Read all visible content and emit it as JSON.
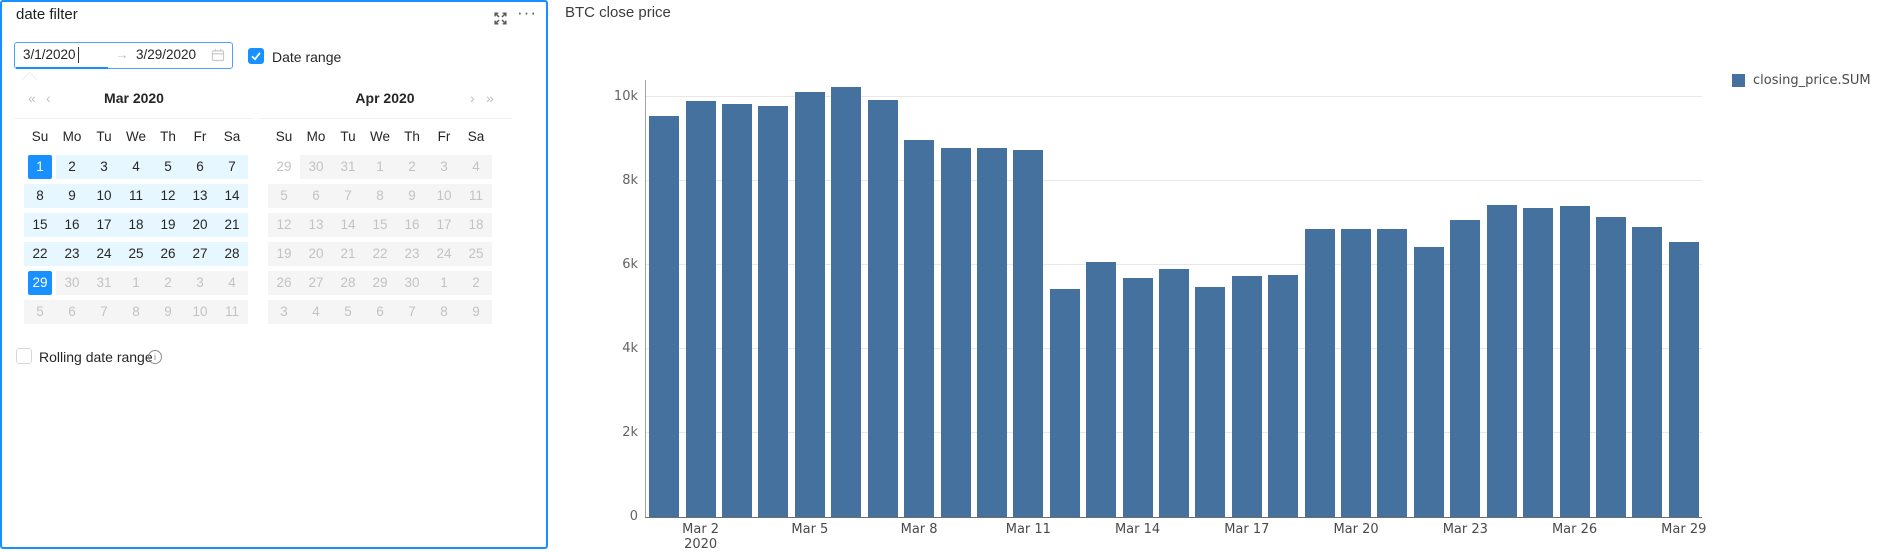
{
  "colors": {
    "accent": "#1890ff",
    "range_bg": "#e6f7ff",
    "disabled_bg": "#f5f5f5",
    "bar": "#45719f"
  },
  "panel": {
    "title": "date filter",
    "input": {
      "start": "3/1/2020",
      "arrow": "→",
      "end": "3/29/2020"
    },
    "date_range_checkbox": {
      "label": "Date range",
      "checked": true
    },
    "rolling_checkbox": {
      "label": "Rolling date range",
      "checked": false
    }
  },
  "calendar": {
    "weekdays": [
      "Su",
      "Mo",
      "Tu",
      "We",
      "Th",
      "Fr",
      "Sa"
    ],
    "months": [
      {
        "title": "Mar 2020",
        "nav_left": [
          {
            "name": "prev-year-icon",
            "glyph": "«"
          },
          {
            "name": "prev-month-icon",
            "glyph": "‹"
          }
        ],
        "nav_right": [],
        "weeks": [
          [
            {
              "d": 1,
              "s": "sel"
            },
            {
              "d": 2,
              "s": "range"
            },
            {
              "d": 3,
              "s": "range"
            },
            {
              "d": 4,
              "s": "range"
            },
            {
              "d": 5,
              "s": "range"
            },
            {
              "d": 6,
              "s": "range"
            },
            {
              "d": 7,
              "s": "range"
            }
          ],
          [
            {
              "d": 8,
              "s": "range"
            },
            {
              "d": 9,
              "s": "range"
            },
            {
              "d": 10,
              "s": "range"
            },
            {
              "d": 11,
              "s": "range"
            },
            {
              "d": 12,
              "s": "range"
            },
            {
              "d": 13,
              "s": "range"
            },
            {
              "d": 14,
              "s": "range"
            }
          ],
          [
            {
              "d": 15,
              "s": "range"
            },
            {
              "d": 16,
              "s": "range"
            },
            {
              "d": 17,
              "s": "range"
            },
            {
              "d": 18,
              "s": "range"
            },
            {
              "d": 19,
              "s": "range"
            },
            {
              "d": 20,
              "s": "range"
            },
            {
              "d": 21,
              "s": "range"
            }
          ],
          [
            {
              "d": 22,
              "s": "range"
            },
            {
              "d": 23,
              "s": "range"
            },
            {
              "d": 24,
              "s": "range"
            },
            {
              "d": 25,
              "s": "range"
            },
            {
              "d": 26,
              "s": "range"
            },
            {
              "d": 27,
              "s": "range"
            },
            {
              "d": 28,
              "s": "range"
            }
          ],
          [
            {
              "d": 29,
              "s": "sel"
            },
            {
              "d": 30,
              "s": "dis"
            },
            {
              "d": 31,
              "s": "dis"
            },
            {
              "d": 1,
              "s": "dis"
            },
            {
              "d": 2,
              "s": "dis"
            },
            {
              "d": 3,
              "s": "dis"
            },
            {
              "d": 4,
              "s": "dis"
            }
          ],
          [
            {
              "d": 5,
              "s": "dis"
            },
            {
              "d": 6,
              "s": "dis"
            },
            {
              "d": 7,
              "s": "dis"
            },
            {
              "d": 8,
              "s": "dis"
            },
            {
              "d": 9,
              "s": "dis"
            },
            {
              "d": 10,
              "s": "dis"
            },
            {
              "d": 11,
              "s": "dis"
            }
          ]
        ]
      },
      {
        "title": "Apr 2020",
        "nav_left": [],
        "nav_right": [
          {
            "name": "next-month-icon",
            "glyph": "›"
          },
          {
            "name": "next-year-icon",
            "glyph": "»"
          }
        ],
        "weeks": [
          [
            {
              "d": 29,
              "s": "out"
            },
            {
              "d": 30,
              "s": "dis"
            },
            {
              "d": 31,
              "s": "dis"
            },
            {
              "d": 1,
              "s": "dis"
            },
            {
              "d": 2,
              "s": "dis"
            },
            {
              "d": 3,
              "s": "dis"
            },
            {
              "d": 4,
              "s": "dis"
            }
          ],
          [
            {
              "d": 5,
              "s": "dis"
            },
            {
              "d": 6,
              "s": "dis"
            },
            {
              "d": 7,
              "s": "dis"
            },
            {
              "d": 8,
              "s": "dis"
            },
            {
              "d": 9,
              "s": "dis"
            },
            {
              "d": 10,
              "s": "dis"
            },
            {
              "d": 11,
              "s": "dis"
            }
          ],
          [
            {
              "d": 12,
              "s": "dis"
            },
            {
              "d": 13,
              "s": "dis"
            },
            {
              "d": 14,
              "s": "dis"
            },
            {
              "d": 15,
              "s": "dis"
            },
            {
              "d": 16,
              "s": "dis"
            },
            {
              "d": 17,
              "s": "dis"
            },
            {
              "d": 18,
              "s": "dis"
            }
          ],
          [
            {
              "d": 19,
              "s": "dis"
            },
            {
              "d": 20,
              "s": "dis"
            },
            {
              "d": 21,
              "s": "dis"
            },
            {
              "d": 22,
              "s": "dis"
            },
            {
              "d": 23,
              "s": "dis"
            },
            {
              "d": 24,
              "s": "dis"
            },
            {
              "d": 25,
              "s": "dis"
            }
          ],
          [
            {
              "d": 26,
              "s": "dis"
            },
            {
              "d": 27,
              "s": "dis"
            },
            {
              "d": 28,
              "s": "dis"
            },
            {
              "d": 29,
              "s": "dis"
            },
            {
              "d": 30,
              "s": "dis"
            },
            {
              "d": 1,
              "s": "dis"
            },
            {
              "d": 2,
              "s": "dis"
            }
          ],
          [
            {
              "d": 3,
              "s": "dis"
            },
            {
              "d": 4,
              "s": "dis"
            },
            {
              "d": 5,
              "s": "dis"
            },
            {
              "d": 6,
              "s": "dis"
            },
            {
              "d": 7,
              "s": "dis"
            },
            {
              "d": 8,
              "s": "dis"
            },
            {
              "d": 9,
              "s": "dis"
            }
          ]
        ]
      }
    ]
  },
  "chart": {
    "title": "BTC close price",
    "legend": {
      "label": "closing_price.SUM"
    }
  },
  "chart_data": {
    "type": "bar",
    "title": "BTC close price",
    "xlabel": "",
    "ylabel": "",
    "ylim": [
      0,
      10400
    ],
    "grid": true,
    "legend_position": "right",
    "series": [
      {
        "name": "closing_price.SUM",
        "values": [
          9550,
          9900,
          9830,
          9780,
          10120,
          10230,
          9930,
          8980,
          8790,
          8780,
          8740,
          5420,
          6080,
          5700,
          5900,
          5480,
          5730,
          5760,
          6850,
          6850,
          6860,
          6430,
          7080,
          7430,
          7350,
          7410,
          7150,
          6900,
          6550
        ]
      }
    ],
    "categories": [
      "Mar 1",
      "Mar 2",
      "Mar 3",
      "Mar 4",
      "Mar 5",
      "Mar 6",
      "Mar 7",
      "Mar 8",
      "Mar 9",
      "Mar 10",
      "Mar 11",
      "Mar 12",
      "Mar 13",
      "Mar 14",
      "Mar 15",
      "Mar 16",
      "Mar 17",
      "Mar 18",
      "Mar 19",
      "Mar 20",
      "Mar 21",
      "Mar 22",
      "Mar 23",
      "Mar 24",
      "Mar 25",
      "Mar 26",
      "Mar 27",
      "Mar 28",
      "Mar 29"
    ],
    "x_ticks": [
      {
        "index": 1,
        "label": "Mar 2",
        "sub": "2020"
      },
      {
        "index": 4,
        "label": "Mar 5"
      },
      {
        "index": 7,
        "label": "Mar 8"
      },
      {
        "index": 10,
        "label": "Mar 11"
      },
      {
        "index": 13,
        "label": "Mar 14"
      },
      {
        "index": 16,
        "label": "Mar 17"
      },
      {
        "index": 19,
        "label": "Mar 20"
      },
      {
        "index": 22,
        "label": "Mar 23"
      },
      {
        "index": 25,
        "label": "Mar 26"
      },
      {
        "index": 28,
        "label": "Mar 29"
      }
    ],
    "y_ticks": [
      {
        "value": 0,
        "label": "0"
      },
      {
        "value": 2000,
        "label": "2k"
      },
      {
        "value": 4000,
        "label": "4k"
      },
      {
        "value": 6000,
        "label": "6k"
      },
      {
        "value": 8000,
        "label": "8k"
      },
      {
        "value": 10000,
        "label": "10k"
      }
    ]
  }
}
